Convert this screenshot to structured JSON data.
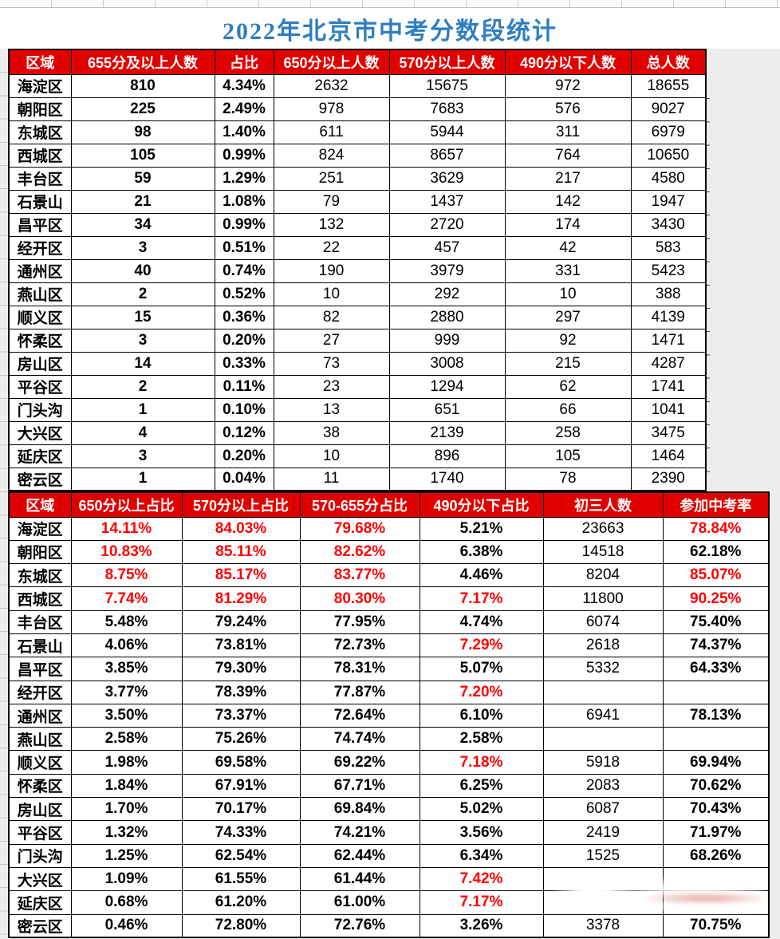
{
  "title": "2022年北京市中考分数段统计",
  "colors": {
    "header_bg": "#E00000",
    "title_color": "#2E7EC1",
    "red_text": "#FF0000",
    "gold": "#FFD966",
    "light_gold": "#FFE699",
    "cream": "#FFF2CC",
    "green": "#CBEFCE",
    "gray": "#EDEDED"
  },
  "table1": {
    "headers": [
      "区域",
      "655分及以上人数",
      "占比",
      "650分以上人数",
      "570分以上人数",
      "490分以下人数",
      "总人数"
    ],
    "rows": [
      [
        "海淀区",
        "810",
        "4.34%",
        "2632",
        "15675",
        "972",
        "18655"
      ],
      [
        "朝阳区",
        "225",
        "2.49%",
        "978",
        "7683",
        "576",
        "9027"
      ],
      [
        "东城区",
        "98",
        "1.40%",
        "611",
        "5944",
        "311",
        "6979"
      ],
      [
        "西城区",
        "105",
        "0.99%",
        "824",
        "8657",
        "764",
        "10650"
      ],
      [
        "丰台区",
        "59",
        "1.29%",
        "251",
        "3629",
        "217",
        "4580"
      ],
      [
        "石景山",
        "21",
        "1.08%",
        "79",
        "1437",
        "142",
        "1947"
      ],
      [
        "昌平区",
        "34",
        "0.99%",
        "132",
        "2720",
        "174",
        "3430"
      ],
      [
        "经开区",
        "3",
        "0.51%",
        "22",
        "457",
        "42",
        "583"
      ],
      [
        "通州区",
        "40",
        "0.74%",
        "190",
        "3979",
        "331",
        "5423"
      ],
      [
        "燕山区",
        "2",
        "0.52%",
        "10",
        "292",
        "10",
        "388"
      ],
      [
        "顺义区",
        "15",
        "0.36%",
        "82",
        "2880",
        "297",
        "4139"
      ],
      [
        "怀柔区",
        "3",
        "0.20%",
        "27",
        "999",
        "92",
        "1471"
      ],
      [
        "房山区",
        "14",
        "0.33%",
        "73",
        "3008",
        "215",
        "4287"
      ],
      [
        "平谷区",
        "2",
        "0.11%",
        "23",
        "1294",
        "62",
        "1741"
      ],
      [
        "门头沟",
        "1",
        "0.10%",
        "13",
        "651",
        "66",
        "1041"
      ],
      [
        "大兴区",
        "4",
        "0.12%",
        "38",
        "2139",
        "258",
        "3475"
      ],
      [
        "延庆区",
        "3",
        "0.20%",
        "10",
        "896",
        "105",
        "1464"
      ],
      [
        "密云区",
        "1",
        "0.04%",
        "11",
        "1740",
        "78",
        "2390"
      ]
    ]
  },
  "table2": {
    "headers": [
      "区域",
      "650分以上占比",
      "570分以上占比",
      "570-655分占比",
      "490分以下占比",
      "初三人数",
      "参加中考率"
    ],
    "rows": [
      [
        "海淀区",
        {
          "t": "14.11%",
          "red": true
        },
        {
          "t": "84.03%",
          "red": true
        },
        {
          "t": "79.68%",
          "red": true
        },
        "5.21%",
        "23663",
        {
          "t": "78.84%",
          "red": true
        }
      ],
      [
        "朝阳区",
        {
          "t": "10.83%",
          "red": true
        },
        {
          "t": "85.11%",
          "red": true
        },
        {
          "t": "82.62%",
          "red": true
        },
        "6.38%",
        "14518",
        "62.18%"
      ],
      [
        "东城区",
        {
          "t": "8.75%",
          "red": true
        },
        {
          "t": "85.17%",
          "red": true
        },
        {
          "t": "83.77%",
          "red": true
        },
        "4.46%",
        "8204",
        {
          "t": "85.07%",
          "red": true
        }
      ],
      [
        "西城区",
        {
          "t": "7.74%",
          "red": true
        },
        {
          "t": "81.29%",
          "red": true
        },
        {
          "t": "80.30%",
          "red": true
        },
        {
          "t": "7.17%",
          "red": true
        },
        "11800",
        {
          "t": "90.25%",
          "red": true
        }
      ],
      [
        "丰台区",
        "5.48%",
        "79.24%",
        "77.95%",
        "4.74%",
        "6074",
        "75.40%"
      ],
      [
        "石景山",
        "4.06%",
        "73.81%",
        "72.73%",
        {
          "t": "7.29%",
          "red": true
        },
        "2618",
        "74.37%"
      ],
      [
        "昌平区",
        "3.85%",
        "79.30%",
        "78.31%",
        "5.07%",
        "5332",
        "64.33%"
      ],
      [
        "经开区",
        "3.77%",
        "78.39%",
        "77.87%",
        {
          "t": "7.20%",
          "red": true
        },
        "",
        ""
      ],
      [
        "通州区",
        "3.50%",
        "73.37%",
        "72.64%",
        "6.10%",
        "6941",
        "78.13%"
      ],
      [
        "燕山区",
        "2.58%",
        "75.26%",
        "74.74%",
        "2.58%",
        "",
        ""
      ],
      [
        "顺义区",
        "1.98%",
        "69.58%",
        "69.22%",
        {
          "t": "7.18%",
          "red": true
        },
        "5918",
        "69.94%"
      ],
      [
        "怀柔区",
        "1.84%",
        "67.91%",
        "67.71%",
        "6.25%",
        "2083",
        "70.62%"
      ],
      [
        "房山区",
        "1.70%",
        "70.17%",
        "69.84%",
        "5.02%",
        "6087",
        "70.43%"
      ],
      [
        "平谷区",
        "1.32%",
        "74.33%",
        "74.21%",
        "3.56%",
        "2419",
        "71.97%"
      ],
      [
        "门头沟",
        "1.25%",
        "62.54%",
        "62.44%",
        "6.34%",
        "1525",
        "68.26%"
      ],
      [
        "大兴区",
        "1.09%",
        "61.55%",
        "61.44%",
        {
          "t": "7.42%",
          "red": true
        },
        "",
        ""
      ],
      [
        "延庆区",
        "0.68%",
        "61.20%",
        "61.00%",
        {
          "t": "7.17%",
          "red": true
        },
        "",
        ""
      ],
      [
        "密云区",
        "0.46%",
        "72.80%",
        "72.76%",
        "3.26%",
        "3378",
        "70.75%"
      ]
    ]
  }
}
